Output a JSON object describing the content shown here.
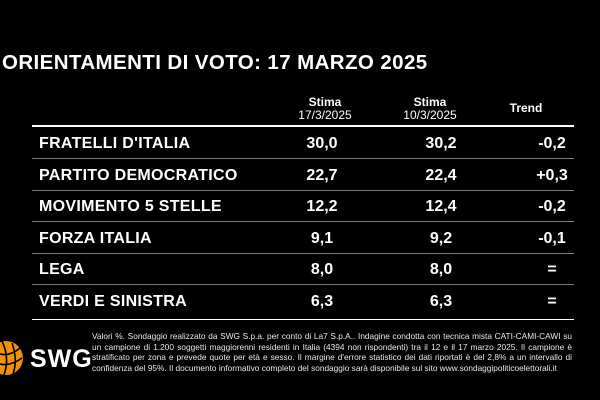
{
  "title": "ORIENTAMENTI DI VOTO: 17 MARZO 2025",
  "columns": [
    {
      "label": "Stima",
      "sub": "17/3/2025"
    },
    {
      "label": "Stima",
      "sub": "10/3/2025"
    },
    {
      "label": "Trend",
      "sub": ""
    }
  ],
  "chart_data": {
    "type": "table",
    "title": "ORIENTAMENTI DI VOTO: 17 MARZO 2025",
    "columns": [
      "Stima 17/3/2025",
      "Stima 10/3/2025",
      "Trend"
    ],
    "rows": [
      {
        "party": "FRATELLI D'ITALIA",
        "current": "30,0",
        "previous": "30,2",
        "trend": "-0,2"
      },
      {
        "party": "PARTITO DEMOCRATICO",
        "current": "22,7",
        "previous": "22,4",
        "trend": "+0,3"
      },
      {
        "party": "MOVIMENTO 5 STELLE",
        "current": "12,2",
        "previous": "12,4",
        "trend": "-0,2"
      },
      {
        "party": "FORZA ITALIA",
        "current": "9,1",
        "previous": "9,2",
        "trend": "-0,1"
      },
      {
        "party": "LEGA",
        "current": "8,0",
        "previous": "8,0",
        "trend": "="
      },
      {
        "party": "VERDI E SINISTRA",
        "current": "6,3",
        "previous": "6,3",
        "trend": "="
      }
    ]
  },
  "footnote": "Valori %. Sondaggio realizzato da SWG S.p.a. per conto di La7 S.p.A.. Indagine condotta con tecnica mista CATI-CAMI-CAWI su un campione di 1.200 soggetti maggiorenni residenti in Italia (4394 non rispondenti) tra il 12 e il 17 marzo 2025. Il campione è stratificato per zona e prevede quote per età e sesso. Il margine d'errore statistico dei dati riportati è del 2,8% a un intervallo di confidenza del 95%. Il documento informativo completo del sondaggio sarà disponibile sul sito www.sondaggipoliticoelettorali.it",
  "logo": {
    "text": "SWG",
    "icon": "globe-ball-icon",
    "color": "#f39200"
  }
}
